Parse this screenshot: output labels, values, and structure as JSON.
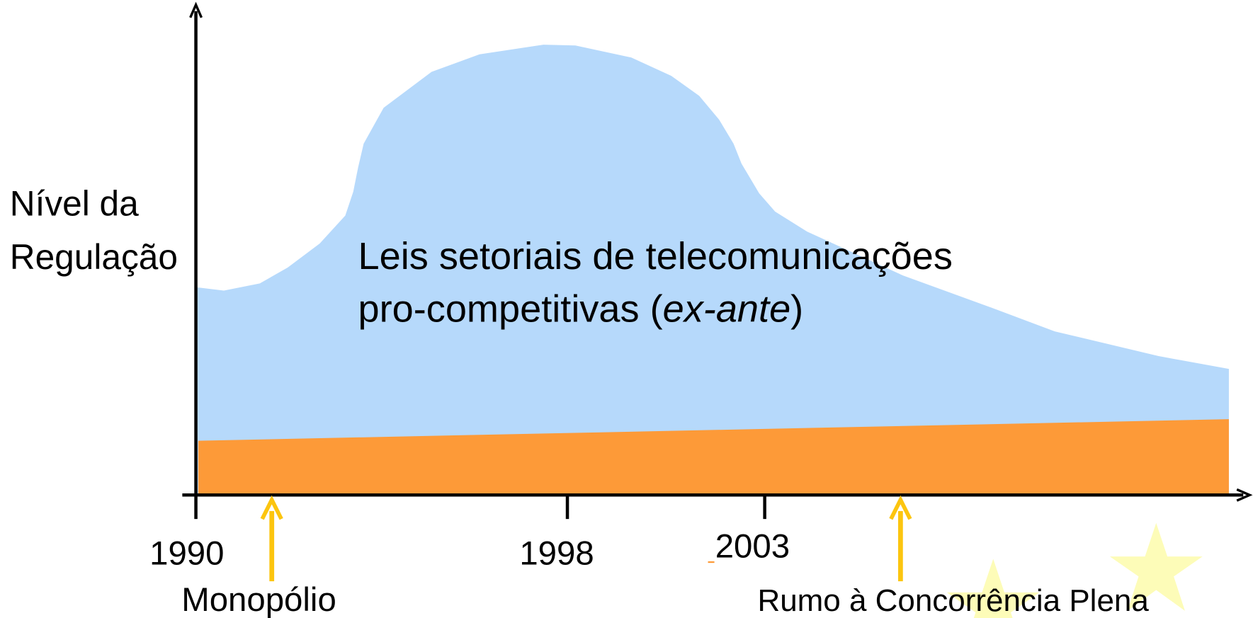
{
  "y_axis_label": [
    "Nível da",
    "Regulação"
  ],
  "x_labels": [
    "1990",
    "1998",
    "2003"
  ],
  "area_text": {
    "line1": "Leis setoriais de telecomunicações",
    "line2_start": "pro-competitivas (",
    "line2_italic": "ex-ante",
    "line2_end": ")"
  },
  "annotations": [
    "Monopólio",
    "Rumo à Concorrência Plena"
  ]
}
